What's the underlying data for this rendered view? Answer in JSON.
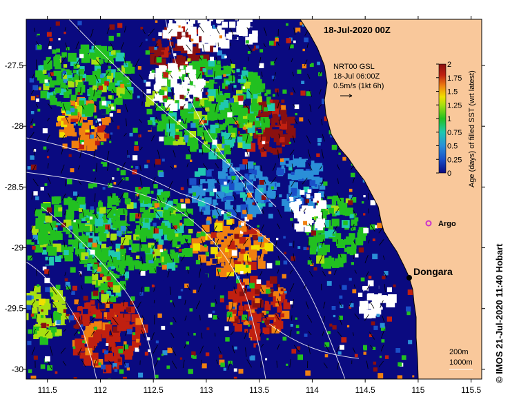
{
  "map": {
    "title": "18-Jul-2020 00Z",
    "current_legend": {
      "line1": "NRT00 GSL",
      "line2": "18-Jul 06:00Z",
      "line3": "0.5m/s (1kt 6h)"
    },
    "depth_legend": {
      "line1": "200m",
      "line2": "1000m"
    },
    "places": [
      {
        "name": "Dongara",
        "lon": 114.93,
        "lat": -29.25
      }
    ],
    "argo": {
      "label": "Argo",
      "lon": 115.13,
      "lat": -28.82,
      "color": "#cc33cc"
    },
    "credit": "© IMOS 21-Jul-2020 11:40 Hobart",
    "colors": {
      "land": "#f9c89b",
      "dark_blue": "#0a0a80",
      "no_data": "#ffffff"
    }
  },
  "chart_data": {
    "type": "heatmap",
    "x_ticks": [
      "111.5",
      "112",
      "112.5",
      "113",
      "113.5",
      "114",
      "114.5",
      "115",
      "115.5"
    ],
    "y_ticks": [
      "-27.5",
      "-28",
      "-28.5",
      "-29",
      "-29.5",
      "-30"
    ],
    "xlim": [
      111.3,
      115.6
    ],
    "ylim": [
      -30.08,
      -27.12
    ],
    "colorbar": {
      "label": "Age (days) of filled SST (wrt latest)",
      "range": [
        0,
        2
      ],
      "ticks": [
        "0",
        "0.25",
        "0.5",
        "0.75",
        "1",
        "1.25",
        "1.5",
        "1.75",
        "2"
      ],
      "colors": [
        "#0a0a80",
        "#1a4fc8",
        "#2a8fd8",
        "#20c8b0",
        "#22c020",
        "#a8e010",
        "#f0e000",
        "#f08010",
        "#c02010",
        "#8a1010"
      ]
    }
  }
}
